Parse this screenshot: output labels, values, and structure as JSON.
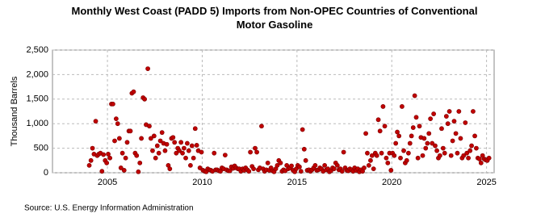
{
  "chart_data": {
    "type": "scatter",
    "title": "Monthly West Coast (PADD 5) Imports from Non-OPEC Countries of Conventional Motor Gasoline",
    "y_label": "Thousand Barrels",
    "source": "Source: U.S. Energy Information Administration",
    "color": "#c00000",
    "grid": true,
    "xlim": [
      2002.1,
      2025.4
    ],
    "xticks": [
      2005,
      2010,
      2015,
      2020,
      2025
    ],
    "ylim": [
      0,
      2500
    ],
    "yticks": [
      0,
      500,
      {
        "value": 1000,
        "label": "1,000"
      },
      {
        "value": 1500,
        "label": "1,500"
      },
      {
        "value": 2000,
        "label": "2,000"
      },
      {
        "value": 2500,
        "label": "2,500"
      }
    ],
    "x": [
      2004.04,
      2004.13,
      2004.21,
      2004.29,
      2004.38,
      2004.46,
      2004.54,
      2004.63,
      2004.71,
      2004.79,
      2004.88,
      2004.96,
      2005.04,
      2005.13,
      2005.21,
      2005.29,
      2005.38,
      2005.46,
      2005.54,
      2005.63,
      2005.71,
      2005.79,
      2005.88,
      2005.96,
      2006.04,
      2006.13,
      2006.21,
      2006.29,
      2006.38,
      2006.46,
      2006.54,
      2006.63,
      2006.71,
      2006.79,
      2006.88,
      2006.96,
      2007.04,
      2007.13,
      2007.21,
      2007.29,
      2007.38,
      2007.46,
      2007.54,
      2007.63,
      2007.71,
      2007.79,
      2007.88,
      2007.96,
      2008.04,
      2008.13,
      2008.21,
      2008.29,
      2008.38,
      2008.46,
      2008.54,
      2008.63,
      2008.71,
      2008.79,
      2008.88,
      2008.96,
      2009.04,
      2009.13,
      2009.21,
      2009.29,
      2009.38,
      2009.46,
      2009.54,
      2009.63,
      2009.71,
      2009.79,
      2009.88,
      2009.96,
      2010.04,
      2010.13,
      2010.21,
      2010.29,
      2010.38,
      2010.46,
      2010.54,
      2010.63,
      2010.71,
      2010.79,
      2010.88,
      2010.96,
      2011.04,
      2011.13,
      2011.21,
      2011.29,
      2011.38,
      2011.46,
      2011.54,
      2011.63,
      2011.71,
      2011.79,
      2011.88,
      2011.96,
      2012.04,
      2012.13,
      2012.21,
      2012.29,
      2012.38,
      2012.46,
      2012.54,
      2012.63,
      2012.71,
      2012.79,
      2012.88,
      2012.96,
      2013.04,
      2013.13,
      2013.21,
      2013.29,
      2013.38,
      2013.46,
      2013.54,
      2013.63,
      2013.71,
      2013.79,
      2013.88,
      2013.96,
      2014.04,
      2014.13,
      2014.21,
      2014.29,
      2014.38,
      2014.46,
      2014.54,
      2014.63,
      2014.71,
      2014.79,
      2014.88,
      2014.96,
      2015.04,
      2015.13,
      2015.21,
      2015.29,
      2015.38,
      2015.46,
      2015.54,
      2015.63,
      2015.71,
      2015.79,
      2015.88,
      2015.96,
      2016.04,
      2016.13,
      2016.21,
      2016.29,
      2016.38,
      2016.46,
      2016.54,
      2016.63,
      2016.71,
      2016.79,
      2016.88,
      2016.96,
      2017.04,
      2017.13,
      2017.21,
      2017.29,
      2017.38,
      2017.46,
      2017.54,
      2017.63,
      2017.71,
      2017.79,
      2017.88,
      2017.96,
      2018.04,
      2018.13,
      2018.21,
      2018.29,
      2018.38,
      2018.46,
      2018.54,
      2018.63,
      2018.71,
      2018.79,
      2018.88,
      2018.96,
      2019.04,
      2019.13,
      2019.21,
      2019.29,
      2019.38,
      2019.46,
      2019.54,
      2019.63,
      2019.71,
      2019.79,
      2019.88,
      2019.96,
      2020.04,
      2020.13,
      2020.21,
      2020.29,
      2020.38,
      2020.46,
      2020.54,
      2020.63,
      2020.71,
      2020.79,
      2020.88,
      2020.96,
      2021.04,
      2021.13,
      2021.21,
      2021.29,
      2021.38,
      2021.46,
      2021.54,
      2021.63,
      2021.71,
      2021.79,
      2021.88,
      2021.96,
      2022.04,
      2022.13,
      2022.21,
      2022.29,
      2022.38,
      2022.46,
      2022.54,
      2022.63,
      2022.71,
      2022.79,
      2022.88,
      2022.96,
      2023.04,
      2023.13,
      2023.21,
      2023.29,
      2023.38,
      2023.46,
      2023.54,
      2023.63,
      2023.71,
      2023.79,
      2023.88,
      2023.96,
      2024.04,
      2024.13,
      2024.21,
      2024.29,
      2024.38,
      2024.46,
      2024.54,
      2024.63,
      2024.71,
      2024.79,
      2024.88,
      2024.96,
      2025.04,
      2025.13
    ],
    "values": [
      150,
      250,
      500,
      380,
      1050,
      350,
      380,
      400,
      30,
      370,
      250,
      200,
      380,
      300,
      1400,
      1400,
      650,
      1100,
      1000,
      700,
      100,
      400,
      50,
      300,
      620,
      850,
      850,
      1620,
      1650,
      400,
      350,
      20,
      200,
      700,
      1530,
      1500,
      980,
      2120,
      950,
      700,
      450,
      750,
      300,
      550,
      400,
      650,
      820,
      600,
      450,
      580,
      150,
      80,
      700,
      720,
      620,
      400,
      500,
      450,
      620,
      400,
      500,
      300,
      600,
      450,
      150,
      550,
      300,
      900,
      560,
      450,
      100,
      420,
      50,
      30,
      20,
      80,
      60,
      50,
      30,
      400,
      60,
      60,
      40,
      30,
      100,
      80,
      360,
      60,
      40,
      40,
      120,
      90,
      140,
      100,
      80,
      80,
      30,
      80,
      50,
      100,
      60,
      30,
      420,
      130,
      80,
      500,
      420,
      60,
      100,
      950,
      80,
      30,
      60,
      200,
      50,
      100,
      40,
      20,
      80,
      150,
      250,
      200,
      30,
      60,
      40,
      150,
      80,
      100,
      140,
      50,
      20,
      80,
      150,
      120,
      30,
      880,
      480,
      250,
      50,
      60,
      30,
      60,
      100,
      150,
      50,
      60,
      100,
      80,
      30,
      150,
      60,
      80,
      20,
      40,
      100,
      80,
      200,
      150,
      60,
      80,
      30,
      420,
      100,
      50,
      40,
      80,
      60,
      30,
      100,
      50,
      80,
      20,
      60,
      30,
      100,
      800,
      400,
      150,
      250,
      350,
      80,
      400,
      350,
      1080,
      850,
      400,
      1350,
      950,
      300,
      200,
      400,
      50,
      400,
      350,
      600,
      830,
      750,
      300,
      1350,
      450,
      200,
      250,
      400,
      600,
      750,
      920,
      1570,
      1130,
      300,
      950,
      720,
      350,
      700,
      500,
      600,
      800,
      1100,
      600,
      1200,
      550,
      450,
      300,
      350,
      900,
      500,
      400,
      1150,
      1000,
      1250,
      350,
      650,
      1050,
      800,
      400,
      1250,
      700,
      300,
      350,
      1020,
      400,
      300,
      450,
      550,
      1250,
      750,
      500,
      300,
      280,
      200,
      350,
      280,
      260,
      250,
      300
    ]
  }
}
